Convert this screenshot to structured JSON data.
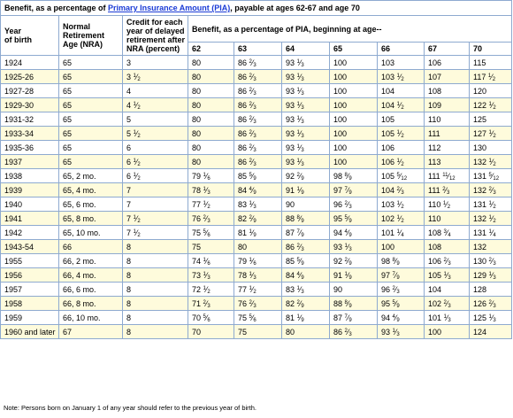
{
  "caption": {
    "prefix": "Benefit, as a percentage of ",
    "link": "Primary Insurance Amount (PIA)",
    "suffix": ", payable at ages 62-67 and age 70"
  },
  "headers": {
    "year": "Year\nof birth",
    "nra": "Normal\nRetirement\nAge (NRA)",
    "credit": "Credit for each\nyear of delayed\nretirement after\nNRA (percent)",
    "benefit_title": "Benefit, as a percentage of PIA, beginning at age--",
    "ages": [
      "62",
      "63",
      "64",
      "65",
      "66",
      "67",
      "70"
    ]
  },
  "rows": [
    [
      "1924",
      "65",
      "3",
      "80",
      "86 2/3",
      "93 1/3",
      "100",
      "103",
      "106",
      "115"
    ],
    [
      "1925-26",
      "65",
      "3 1/2",
      "80",
      "86 2/3",
      "93 1/3",
      "100",
      "103 1/2",
      "107",
      "117 1/2"
    ],
    [
      "1927-28",
      "65",
      "4",
      "80",
      "86 2/3",
      "93 1/3",
      "100",
      "104",
      "108",
      "120"
    ],
    [
      "1929-30",
      "65",
      "4 1/2",
      "80",
      "86 2/3",
      "93 1/3",
      "100",
      "104 1/2",
      "109",
      "122 1/2"
    ],
    [
      "1931-32",
      "65",
      "5",
      "80",
      "86 2/3",
      "93 1/3",
      "100",
      "105",
      "110",
      "125"
    ],
    [
      "1933-34",
      "65",
      "5 1/2",
      "80",
      "86 2/3",
      "93 1/3",
      "100",
      "105 1/2",
      "111",
      "127 1/2"
    ],
    [
      "1935-36",
      "65",
      "6",
      "80",
      "86 2/3",
      "93 1/3",
      "100",
      "106",
      "112",
      "130"
    ],
    [
      "1937",
      "65",
      "6 1/2",
      "80",
      "86 2/3",
      "93 1/3",
      "100",
      "106 1/2",
      "113",
      "132 1/2"
    ],
    [
      "1938",
      "65, 2 mo.",
      "6 1/2",
      "79 1/6",
      "85 5/9",
      "92 2/9",
      "98 8/9",
      "105 5/12",
      "111 11/12",
      "131 5/12"
    ],
    [
      "1939",
      "65, 4 mo.",
      "7",
      "78 1/3",
      "84 4/9",
      "91 1/9",
      "97 7/9",
      "104 2/3",
      "111 2/3",
      "132 2/3"
    ],
    [
      "1940",
      "65, 6 mo.",
      "7",
      "77 1/2",
      "83 1/3",
      "90",
      "96 2/3",
      "103 1/2",
      "110 1/2",
      "131 1/2"
    ],
    [
      "1941",
      "65, 8 mo.",
      "7 1/2",
      "76 2/3",
      "82 2/9",
      "88 8/9",
      "95 5/9",
      "102 1/2",
      "110",
      "132 1/2"
    ],
    [
      "1942",
      "65, 10 mo.",
      "7 1/2",
      "75 5/6",
      "81 1/9",
      "87 7/9",
      "94 4/9",
      "101 1/4",
      "108 3/4",
      "131 1/4"
    ],
    [
      "1943-54",
      "66",
      "8",
      "75",
      "80",
      "86 2/3",
      "93 1/3",
      "100",
      "108",
      "132"
    ],
    [
      "1955",
      "66, 2 mo.",
      "8",
      "74 1/6",
      "79 1/6",
      "85 5/9",
      "92 2/9",
      "98 8/9",
      "106 2/3",
      "130 2/3"
    ],
    [
      "1956",
      "66, 4 mo.",
      "8",
      "73 1/3",
      "78 1/3",
      "84 4/9",
      "91 1/9",
      "97 7/9",
      "105 1/3",
      "129 1/3"
    ],
    [
      "1957",
      "66, 6 mo.",
      "8",
      "72 1/2",
      "77 1/2",
      "83 1/3",
      "90",
      "96 2/3",
      "104",
      "128"
    ],
    [
      "1958",
      "66, 8 mo.",
      "8",
      "71 2/3",
      "76 2/3",
      "82 2/9",
      "88 8/9",
      "95 5/9",
      "102 2/3",
      "126 2/3"
    ],
    [
      "1959",
      "66, 10 mo.",
      "8",
      "70 5/6",
      "75 5/6",
      "81 1/9",
      "87 7/9",
      "94 4/9",
      "101 1/3",
      "125 1/3"
    ],
    [
      "1960 and later",
      "67",
      "8",
      "70",
      "75",
      "80",
      "86 2/3",
      "93 1/3",
      "100",
      "124"
    ]
  ],
  "note": "Note: Persons born on January 1 of any year should refer to the previous year of birth.",
  "colors": {
    "header_bg": "#ffffff",
    "row_highlight": "#fefbdc",
    "border": "#8eaad0",
    "link": "#1a3bd6"
  }
}
